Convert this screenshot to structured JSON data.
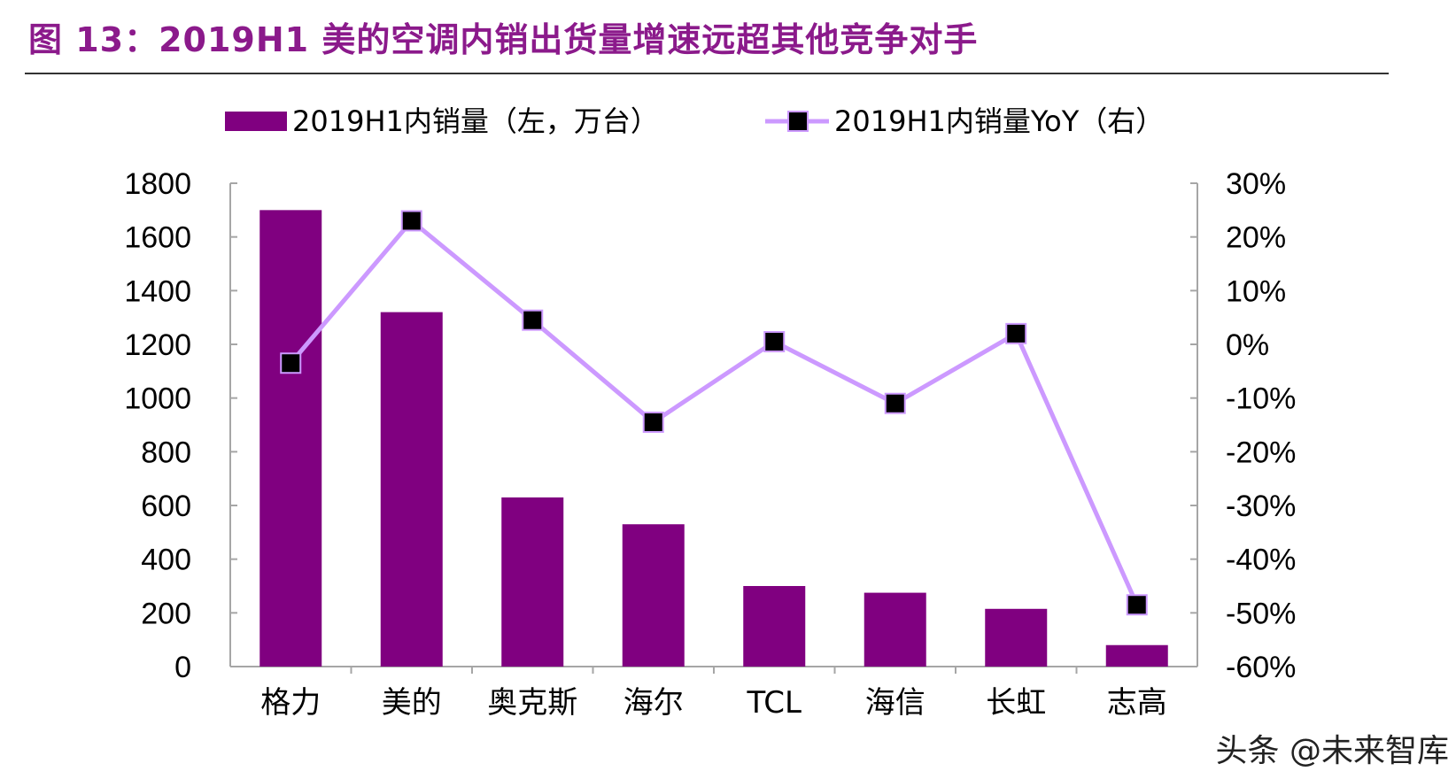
{
  "title": "图 13：2019H1 美的空调内销出货量增速远超其他竞争对手",
  "watermark": "头条 @未来智库",
  "chart_data": {
    "type": "bar+line",
    "categories": [
      "格力",
      "美的",
      "奥克斯",
      "海尔",
      "TCL",
      "海信",
      "长虹",
      "志高"
    ],
    "series": [
      {
        "name": "2019H1内销量（左，万台）",
        "type": "bar",
        "axis": "left",
        "color": "#800080",
        "values": [
          1700,
          1320,
          630,
          530,
          300,
          275,
          215,
          80
        ]
      },
      {
        "name": "2019H1内销量YoY（右）",
        "type": "line",
        "axis": "right",
        "color": "#cc99ff",
        "marker_color": "#000000",
        "values": [
          -3.5,
          23,
          4.5,
          -14.5,
          0.5,
          -11,
          2,
          -48.5
        ]
      }
    ],
    "left_axis": {
      "ylim": [
        0,
        1800
      ],
      "ticks": [
        "0",
        "200",
        "400",
        "600",
        "800",
        "1000",
        "1200",
        "1400",
        "1600",
        "1800"
      ]
    },
    "right_axis": {
      "ylim": [
        -60,
        30
      ],
      "unit": "%",
      "ticks": [
        "-60%",
        "-50%",
        "-40%",
        "-30%",
        "-20%",
        "-10%",
        "0%",
        "10%",
        "20%",
        "30%"
      ]
    },
    "legend_position": "top",
    "grid": false
  }
}
